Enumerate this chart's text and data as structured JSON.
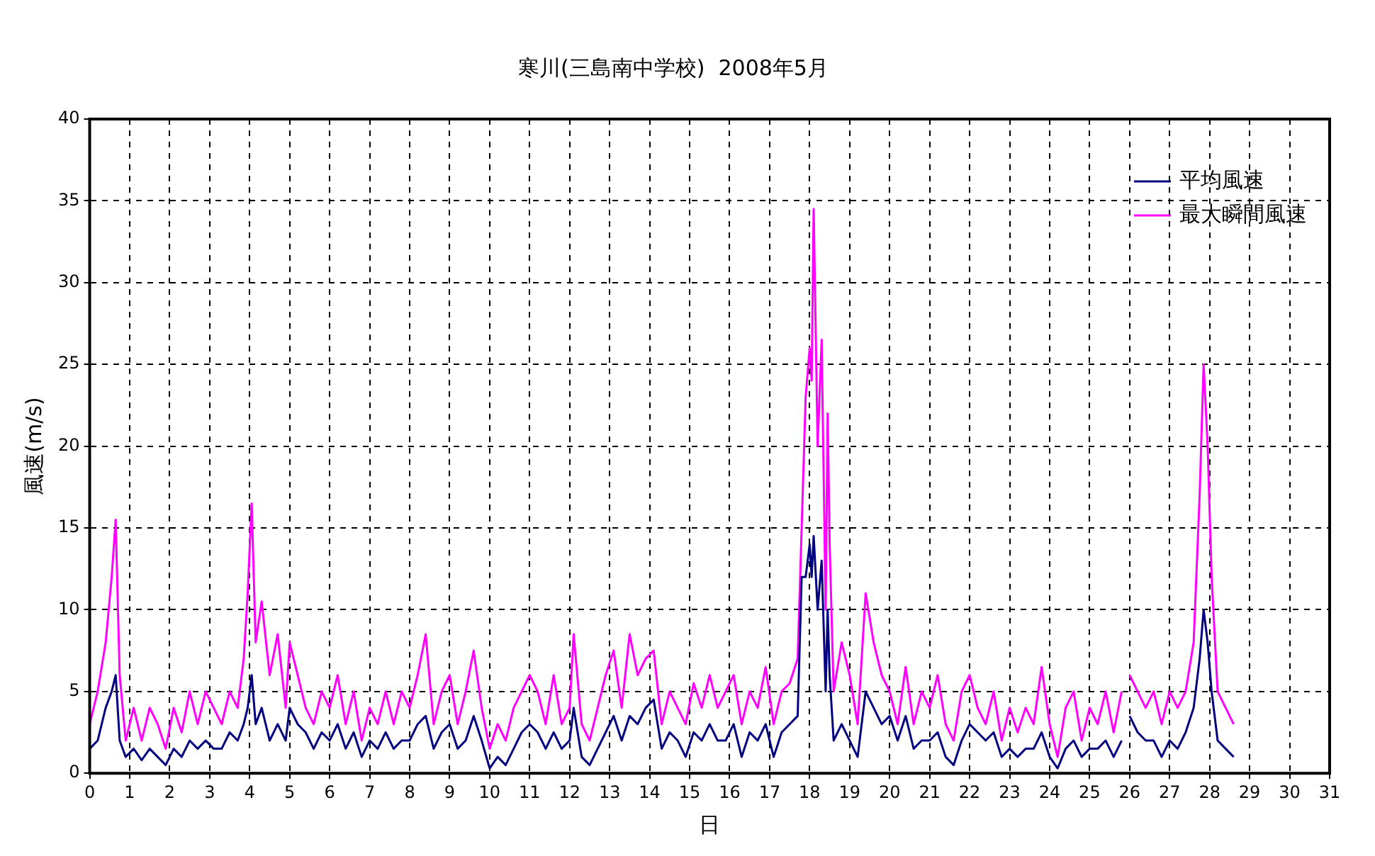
{
  "chart_data": {
    "type": "line",
    "title": "寒川(三島南中学校)  2008年5月",
    "xlabel": "日",
    "ylabel": "風速(m/s)",
    "xlim": [
      0,
      31
    ],
    "xticks": [
      0,
      1,
      2,
      3,
      4,
      5,
      6,
      7,
      8,
      9,
      10,
      11,
      12,
      13,
      14,
      15,
      16,
      17,
      18,
      19,
      20,
      21,
      22,
      23,
      24,
      25,
      26,
      27,
      28,
      29,
      30,
      31
    ],
    "ylim": [
      0,
      40
    ],
    "yticks": [
      0,
      5,
      10,
      15,
      20,
      25,
      30,
      35,
      40
    ],
    "grid": true,
    "legend": "top right",
    "line_style": "solid",
    "marker": "none",
    "x": [
      0,
      0.2,
      0.4,
      0.55,
      0.65,
      0.75,
      0.9,
      1.1,
      1.3,
      1.5,
      1.7,
      1.9,
      2.1,
      2.3,
      2.5,
      2.7,
      2.9,
      3.1,
      3.3,
      3.5,
      3.7,
      3.85,
      3.95,
      4.05,
      4.15,
      4.3,
      4.5,
      4.7,
      4.9,
      5,
      5.2,
      5.4,
      5.6,
      5.8,
      6,
      6.2,
      6.4,
      6.6,
      6.8,
      7,
      7.2,
      7.4,
      7.6,
      7.8,
      8,
      8.2,
      8.4,
      8.6,
      8.8,
      9,
      9.2,
      9.4,
      9.6,
      9.8,
      10,
      10.2,
      10.4,
      10.6,
      10.8,
      11,
      11.2,
      11.4,
      11.6,
      11.8,
      12,
      12.1,
      12.3,
      12.5,
      12.7,
      12.9,
      13.1,
      13.3,
      13.5,
      13.7,
      13.9,
      14.1,
      14.3,
      14.5,
      14.7,
      14.9,
      15.1,
      15.3,
      15.5,
      15.7,
      15.9,
      16.1,
      16.3,
      16.5,
      16.7,
      16.9,
      17.1,
      17.3,
      17.5,
      17.7,
      17.8,
      17.9,
      18,
      18.05,
      18.1,
      18.2,
      18.3,
      18.4,
      18.45,
      18.5,
      18.6,
      18.8,
      19,
      19.2,
      19.4,
      19.6,
      19.8,
      20,
      20.2,
      20.4,
      20.6,
      20.8,
      21,
      21.2,
      21.4,
      21.6,
      21.8,
      22,
      22.2,
      22.4,
      22.6,
      22.8,
      23,
      23.2,
      23.4,
      23.6,
      23.8,
      24,
      24.2,
      24.4,
      24.6,
      24.8,
      25,
      25.2,
      25.4,
      25.6,
      25.8,
      25.9,
      26,
      26.2,
      26.4,
      26.6,
      26.8,
      27,
      27.2,
      27.4,
      27.6,
      27.75,
      27.85,
      27.95,
      28.05,
      28.2,
      28.4,
      28.6
    ],
    "series": [
      {
        "name": "平均風速",
        "color": "#000080",
        "values": [
          1.5,
          2,
          4,
          5,
          6,
          2,
          1,
          1.5,
          0.8,
          1.5,
          1,
          0.5,
          1.5,
          1,
          2,
          1.5,
          2,
          1.5,
          1.5,
          2.5,
          2,
          3,
          4,
          6,
          3,
          4,
          2,
          3,
          2,
          4,
          3,
          2.5,
          1.5,
          2.5,
          2,
          3,
          1.5,
          2.5,
          1,
          2,
          1.5,
          2.5,
          1.5,
          2,
          2,
          3,
          3.5,
          1.5,
          2.5,
          3,
          1.5,
          2,
          3.5,
          2,
          0.3,
          1,
          0.5,
          1.5,
          2.5,
          3,
          2.5,
          1.5,
          2.5,
          1.5,
          2,
          4,
          1,
          0.5,
          1.5,
          2.5,
          3.5,
          2,
          3.5,
          3,
          4,
          4.5,
          1.5,
          2.5,
          2,
          1,
          2.5,
          2,
          3,
          2,
          2,
          3,
          1,
          2.5,
          2,
          3,
          1,
          2.5,
          3,
          3.5,
          12,
          12,
          14,
          12,
          14.5,
          10,
          13,
          5,
          10,
          6,
          2,
          3,
          2,
          1,
          5,
          4,
          3,
          3.5,
          2,
          3.5,
          1.5,
          2,
          2,
          2.5,
          1,
          0.5,
          2,
          3,
          2.5,
          2,
          2.5,
          1,
          1.5,
          1,
          1.5,
          1.5,
          2.5,
          1,
          0.3,
          1.5,
          2,
          1,
          1.5,
          1.5,
          2,
          1,
          2,
          null,
          3.5,
          2.5,
          2,
          2,
          1,
          2,
          1.5,
          2.5,
          4,
          7,
          10,
          8,
          5,
          2,
          1.5,
          1
        ]
      },
      {
        "name": "最大瞬間風速",
        "color": "#ff00ff",
        "values": [
          3,
          5,
          8,
          12,
          15.5,
          6,
          2,
          4,
          2,
          4,
          3,
          1.5,
          4,
          2.5,
          5,
          3,
          5,
          4,
          3,
          5,
          4,
          7,
          11,
          16.5,
          8,
          10.5,
          6,
          8.5,
          4,
          8,
          6,
          4,
          3,
          5,
          4,
          6,
          3,
          5,
          2,
          4,
          3,
          5,
          3,
          5,
          4,
          6,
          8.5,
          3,
          5,
          6,
          3,
          5,
          7.5,
          4,
          1.5,
          3,
          2,
          4,
          5,
          6,
          5,
          3,
          6,
          3,
          4,
          8.5,
          3,
          2,
          4,
          6,
          7.5,
          4,
          8.5,
          6,
          7,
          7.5,
          3,
          5,
          4,
          3,
          5.5,
          4,
          6,
          4,
          5,
          6,
          3,
          5,
          4,
          6.5,
          3,
          5,
          5.5,
          7,
          15,
          23,
          26,
          24,
          34.5,
          20,
          26.5,
          10,
          22,
          14,
          5,
          8,
          6,
          3,
          11,
          8,
          6,
          5,
          3,
          6.5,
          3,
          5,
          4,
          6,
          3,
          2,
          5,
          6,
          4,
          3,
          5,
          2,
          4,
          2.5,
          4,
          3,
          6.5,
          3,
          1,
          4,
          5,
          2,
          4,
          3,
          5,
          2.5,
          5,
          null,
          6,
          5,
          4,
          5,
          3,
          5,
          4,
          5,
          8,
          17,
          25,
          20,
          12,
          5,
          4,
          3
        ]
      }
    ]
  }
}
